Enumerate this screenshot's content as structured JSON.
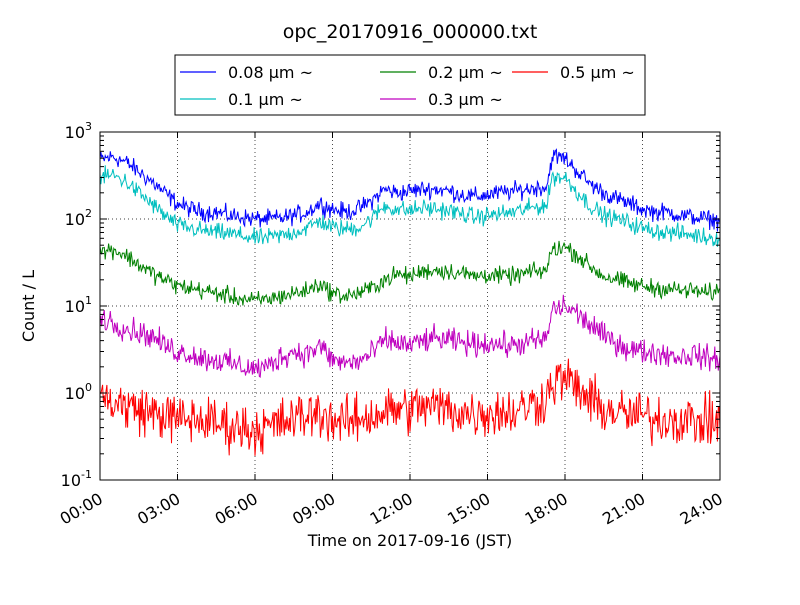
{
  "chart_data": {
    "type": "line",
    "title": "opc_20170916_000000.txt",
    "xlabel": "Time on 2017-09-16 (JST)",
    "ylabel": "Count / L",
    "yscale": "log",
    "ylim": [
      0.1,
      1000
    ],
    "xlim": [
      "00:00",
      "24:00"
    ],
    "x_ticks": [
      "00:00",
      "03:00",
      "06:00",
      "09:00",
      "12:00",
      "15:00",
      "18:00",
      "21:00",
      "24:00"
    ],
    "y_ticks": [
      {
        "value": 0.1,
        "base": "10",
        "exp": "-1"
      },
      {
        "value": 1,
        "base": "10",
        "exp": "0"
      },
      {
        "value": 10,
        "base": "10",
        "exp": "1"
      },
      {
        "value": 100,
        "base": "10",
        "exp": "2"
      },
      {
        "value": 1000,
        "base": "10",
        "exp": "3"
      }
    ],
    "grid": true,
    "legend_position": "top-center",
    "x_hours": [
      0,
      0.5,
      1,
      1.5,
      2,
      2.5,
      3,
      3.5,
      4,
      4.5,
      5,
      5.5,
      6,
      6.5,
      7,
      7.5,
      8,
      8.5,
      9,
      9.5,
      10,
      10.5,
      11,
      11.5,
      12,
      12.5,
      13,
      13.5,
      14,
      14.5,
      15,
      15.5,
      16,
      16.5,
      17,
      17.3,
      17.5,
      18,
      18.5,
      19,
      19.5,
      20,
      20.5,
      21,
      21.5,
      22,
      22.5,
      23,
      23.5,
      24
    ],
    "series": [
      {
        "name": "0.08 μm ~",
        "color": "#0000ff",
        "noise": 0.05,
        "values": [
          480,
          520,
          450,
          350,
          270,
          200,
          150,
          130,
          120,
          120,
          110,
          105,
          100,
          100,
          102,
          110,
          120,
          150,
          130,
          120,
          130,
          160,
          220,
          200,
          210,
          220,
          220,
          210,
          190,
          180,
          190,
          200,
          210,
          220,
          230,
          235,
          530,
          500,
          350,
          250,
          200,
          170,
          150,
          130,
          120,
          120,
          110,
          105,
          100,
          95
        ]
      },
      {
        "name": "0.1 μm ~",
        "color": "#00bfbf",
        "noise": 0.05,
        "values": [
          300,
          320,
          270,
          200,
          150,
          110,
          85,
          78,
          73,
          70,
          68,
          64,
          60,
          61,
          64,
          70,
          78,
          95,
          80,
          76,
          80,
          100,
          140,
          130,
          125,
          135,
          130,
          125,
          115,
          105,
          110,
          115,
          120,
          130,
          140,
          145,
          310,
          300,
          200,
          140,
          110,
          100,
          90,
          78,
          73,
          70,
          68,
          65,
          62,
          60
        ]
      },
      {
        "name": "0.2 μm ~",
        "color": "#008000",
        "noise": 0.05,
        "values": [
          42,
          45,
          38,
          30,
          24,
          20,
          17,
          16,
          15,
          14,
          13,
          12,
          11.5,
          12,
          13,
          14,
          15,
          18,
          14,
          13,
          14,
          16,
          20,
          23,
          22,
          25,
          26,
          25,
          24,
          22,
          23,
          22,
          22,
          24,
          25,
          26,
          45,
          48,
          38,
          28,
          22,
          20,
          18,
          17,
          16,
          16,
          15,
          15,
          14,
          15
        ]
      },
      {
        "name": "0.3 μm ~",
        "color": "#bf00bf",
        "noise": 0.07,
        "values": [
          7.5,
          6.5,
          5.5,
          5,
          4.5,
          3.5,
          3,
          2.8,
          2.5,
          2.4,
          2.2,
          2,
          1.9,
          2,
          2.6,
          3,
          2.8,
          3.5,
          2.4,
          2.2,
          2.3,
          2.8,
          4,
          3.8,
          3.5,
          4,
          4.2,
          4,
          3.8,
          3.6,
          3.8,
          3.6,
          3.5,
          3.8,
          4,
          4.2,
          9,
          10,
          8,
          6,
          4.5,
          3.8,
          3.2,
          3,
          2.9,
          2.8,
          2.6,
          2.8,
          2.5,
          2.5
        ]
      },
      {
        "name": "0.5 μm ~",
        "color": "#ff0000",
        "noise": 0.14,
        "values": [
          0.9,
          0.8,
          0.7,
          0.65,
          0.6,
          0.55,
          0.5,
          0.5,
          0.48,
          0.45,
          0.42,
          0.4,
          0.38,
          0.4,
          0.45,
          0.5,
          0.55,
          0.6,
          0.5,
          0.45,
          0.5,
          0.55,
          0.6,
          0.65,
          0.65,
          0.7,
          0.7,
          0.65,
          0.6,
          0.58,
          0.6,
          0.6,
          0.6,
          0.7,
          0.8,
          0.9,
          1.3,
          1.5,
          1.1,
          0.8,
          0.65,
          0.6,
          0.55,
          0.55,
          0.5,
          0.5,
          0.5,
          0.48,
          0.45,
          0.5
        ]
      }
    ]
  }
}
